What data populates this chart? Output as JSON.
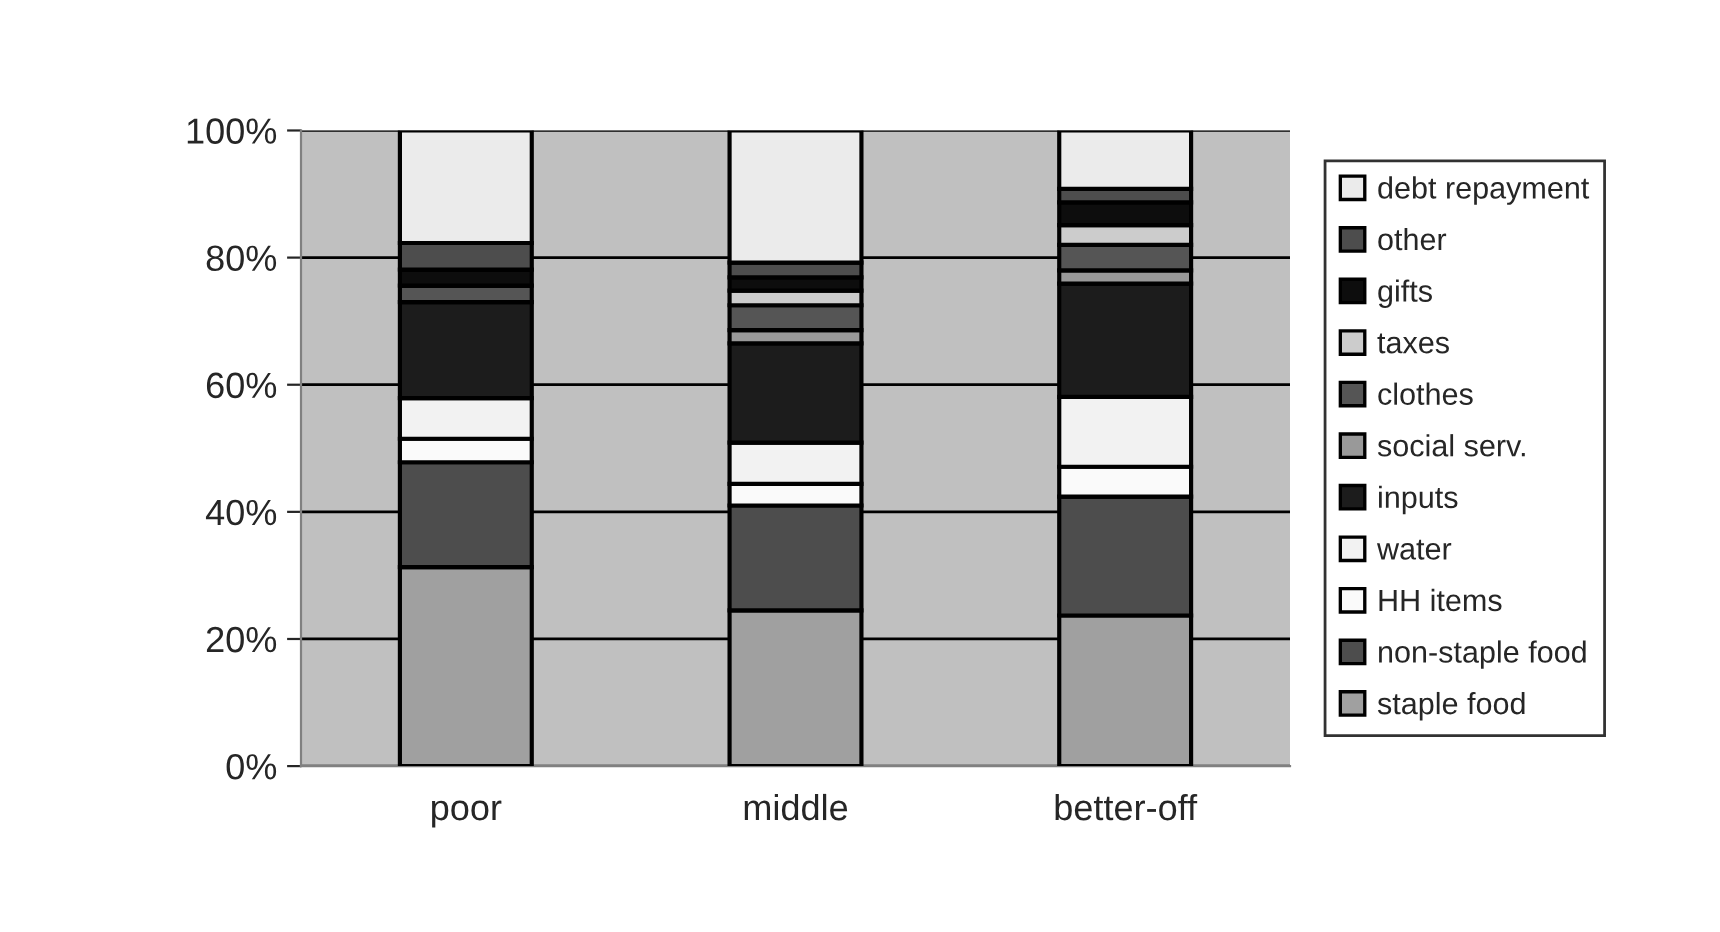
{
  "chart_data": {
    "type": "bar",
    "stacked": true,
    "categories": [
      "poor",
      "middle",
      "better-off"
    ],
    "ylim": [
      0,
      100
    ],
    "yticks": [
      {
        "value": 0,
        "label": "0%"
      },
      {
        "value": 20,
        "label": "20%"
      },
      {
        "value": 40,
        "label": "40%"
      },
      {
        "value": 60,
        "label": "60%"
      },
      {
        "value": 80,
        "label": "80%"
      },
      {
        "value": 100,
        "label": "100%"
      }
    ],
    "grid": "y",
    "legend": "right",
    "series": [
      {
        "name": "staple food",
        "color": "#a0a0a0",
        "values": [
          31.3,
          24.5,
          23.7
        ]
      },
      {
        "name": "non-staple food",
        "color": "#4d4d4d",
        "values": [
          16.5,
          16.5,
          18.7
        ]
      },
      {
        "name": "HH items",
        "color": "#fafafa",
        "values": [
          3.7,
          3.4,
          4.7
        ]
      },
      {
        "name": "water",
        "color": "#f2f2f2",
        "values": [
          6.4,
          6.5,
          11.0
        ]
      },
      {
        "name": "inputs",
        "color": "#1c1c1c",
        "values": [
          15.1,
          15.6,
          17.8
        ]
      },
      {
        "name": "social serv.",
        "color": "#999999",
        "values": [
          null,
          2.1,
          2.1
        ]
      },
      {
        "name": "clothes",
        "color": "#555555",
        "values": [
          2.6,
          3.9,
          4.0
        ]
      },
      {
        "name": "taxes",
        "color": "#cccccc",
        "values": [
          0,
          2.3,
          3.1
        ]
      },
      {
        "name": "gifts",
        "color": "#0d0d0d",
        "values": [
          2.5,
          2.1,
          3.6
        ]
      },
      {
        "name": "other",
        "color": "#4d4d4d",
        "values": [
          4.2,
          2.3,
          2.1
        ]
      },
      {
        "name": "debt repayment",
        "color": "#ebebeb",
        "values": [
          17.7,
          20.8,
          9.2
        ]
      }
    ]
  }
}
